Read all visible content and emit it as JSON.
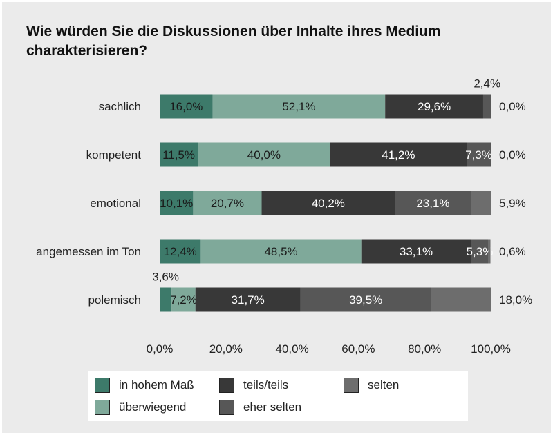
{
  "chart_data": {
    "type": "bar",
    "orientation": "horizontal",
    "stacked": true,
    "title": "Wie würden Sie die Diskussionen über Inhalte ihres Medium charakterisieren?",
    "categories": [
      "sachlich",
      "kompetent",
      "emotional",
      "angemessen im Ton",
      "polemisch"
    ],
    "series": [
      {
        "name": "in hohem Maß",
        "color": "#3d7a6a",
        "values": [
          16.0,
          11.5,
          10.1,
          12.4,
          3.6
        ]
      },
      {
        "name": "überwiegend",
        "color": "#7fa99a",
        "values": [
          52.1,
          40.0,
          20.7,
          48.5,
          7.2
        ]
      },
      {
        "name": "teils/teils",
        "color": "#383838",
        "values": [
          29.6,
          41.2,
          40.2,
          33.1,
          31.7
        ]
      },
      {
        "name": "eher selten",
        "color": "#575757",
        "values": [
          2.4,
          7.3,
          23.1,
          5.3,
          39.5
        ]
      },
      {
        "name": "selten",
        "color": "#6d6d6d",
        "values": [
          0.0,
          0.0,
          5.9,
          0.6,
          18.0
        ]
      }
    ],
    "value_labels": [
      [
        "16,0%",
        "52,1%",
        "29,6%",
        "2,4%",
        "0,0%"
      ],
      [
        "11,5%",
        "40,0%",
        "41,2%",
        "7,3%",
        "0,0%"
      ],
      [
        "10,1%",
        "20,7%",
        "40,2%",
        "23,1%",
        "5,9%"
      ],
      [
        "12,4%",
        "48,5%",
        "33,1%",
        "5,3%",
        "0,6%"
      ],
      [
        "3,6%",
        "7,2%",
        "31,7%",
        "39,5%",
        "18,0%"
      ]
    ],
    "xlim": [
      0,
      100
    ],
    "xticks": [
      "0,0%",
      "20,0%",
      "40,0%",
      "60,0%",
      "80,0%",
      "100,0%"
    ],
    "grid": false,
    "legend_position": "bottom"
  }
}
